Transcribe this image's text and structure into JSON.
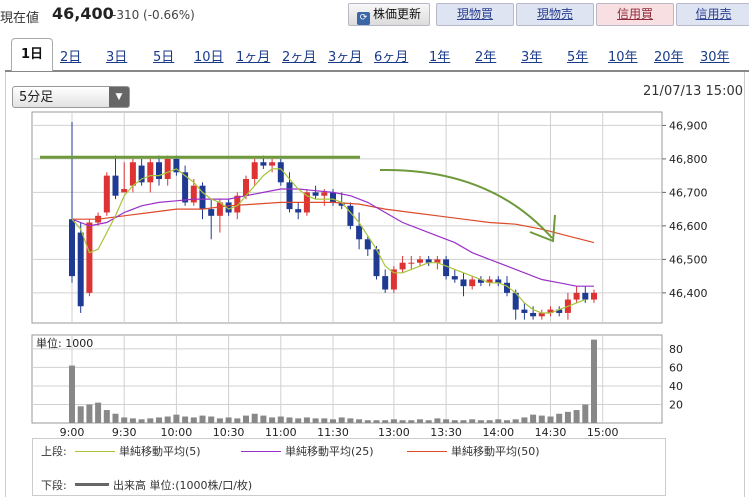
{
  "header": {
    "current_label": "現在値",
    "price": "46,400",
    "change": "-310 (-0.66%)",
    "refresh_label": "株価更新",
    "buttons": [
      "現物買",
      "現物売",
      "信用買",
      "信用売"
    ]
  },
  "tabs": [
    "1日",
    "2日",
    "3日",
    "5日",
    "10日",
    "1ヶ月",
    "2ヶ月",
    "3ヶ月",
    "6ヶ月",
    "1年",
    "2年",
    "3年",
    "5年",
    "10年",
    "20年",
    "30年"
  ],
  "interval_select": "5分足",
  "timestamp": "21/07/13 15:00",
  "colors": {
    "up": "#dd3333",
    "down": "#1f3a93",
    "ma5": "#a8c43a",
    "ma25": "#9b30c8",
    "ma50": "#dd4a2a",
    "volume": "#888888",
    "annotation": "#6e9a3c"
  },
  "chart_data": {
    "type": "candlestick",
    "x_ticks": [
      "9:00",
      "9:30",
      "10:00",
      "10:30",
      "11:00",
      "11:30",
      "13:00",
      "13:30",
      "14:00",
      "14:30",
      "15:00"
    ],
    "y_ticks": [
      "46,900",
      "46,800",
      "46,700",
      "46,600",
      "46,500",
      "46,400"
    ],
    "y_range": [
      46310,
      46940
    ],
    "volume_label": "単位: 1000",
    "volume_ticks": [
      "80",
      "60",
      "40",
      "20"
    ],
    "volume_range": [
      0,
      95
    ],
    "candles": [
      {
        "t": "9:00",
        "o": 46620,
        "h": 46910,
        "l": 46430,
        "c": 46450
      },
      {
        "t": "9:05",
        "o": 46580,
        "h": 46610,
        "l": 46340,
        "c": 46360
      },
      {
        "t": "9:10",
        "o": 46400,
        "h": 46620,
        "l": 46390,
        "c": 46610
      },
      {
        "t": "9:15",
        "o": 46610,
        "h": 46640,
        "l": 46600,
        "c": 46630
      },
      {
        "t": "9:20",
        "o": 46640,
        "h": 46760,
        "l": 46630,
        "c": 46750
      },
      {
        "t": "9:25",
        "o": 46750,
        "h": 46810,
        "l": 46680,
        "c": 46690
      },
      {
        "t": "9:30",
        "o": 46700,
        "h": 46790,
        "l": 46700,
        "c": 46710
      },
      {
        "t": "9:35",
        "o": 46720,
        "h": 46800,
        "l": 46700,
        "c": 46790
      },
      {
        "t": "9:40",
        "o": 46780,
        "h": 46800,
        "l": 46720,
        "c": 46730
      },
      {
        "t": "9:45",
        "o": 46730,
        "h": 46800,
        "l": 46700,
        "c": 46790
      },
      {
        "t": "9:50",
        "o": 46790,
        "h": 46810,
        "l": 46720,
        "c": 46740
      },
      {
        "t": "9:55",
        "o": 46740,
        "h": 46810,
        "l": 46720,
        "c": 46800
      },
      {
        "t": "10:00",
        "o": 46800,
        "h": 46810,
        "l": 46750,
        "c": 46760
      },
      {
        "t": "10:05",
        "o": 46760,
        "h": 46780,
        "l": 46660,
        "c": 46670
      },
      {
        "t": "10:10",
        "o": 46670,
        "h": 46740,
        "l": 46660,
        "c": 46720
      },
      {
        "t": "10:15",
        "o": 46720,
        "h": 46730,
        "l": 46620,
        "c": 46650
      },
      {
        "t": "10:20",
        "o": 46650,
        "h": 46680,
        "l": 46560,
        "c": 46630
      },
      {
        "t": "10:25",
        "o": 46630,
        "h": 46680,
        "l": 46580,
        "c": 46670
      },
      {
        "t": "10:30",
        "o": 46670,
        "h": 46680,
        "l": 46630,
        "c": 46640
      },
      {
        "t": "10:35",
        "o": 46640,
        "h": 46700,
        "l": 46620,
        "c": 46690
      },
      {
        "t": "10:40",
        "o": 46690,
        "h": 46750,
        "l": 46680,
        "c": 46740
      },
      {
        "t": "10:45",
        "o": 46740,
        "h": 46800,
        "l": 46720,
        "c": 46790
      },
      {
        "t": "10:50",
        "o": 46790,
        "h": 46810,
        "l": 46770,
        "c": 46780
      },
      {
        "t": "10:55",
        "o": 46780,
        "h": 46800,
        "l": 46760,
        "c": 46790
      },
      {
        "t": "11:00",
        "o": 46790,
        "h": 46800,
        "l": 46720,
        "c": 46730
      },
      {
        "t": "11:05",
        "o": 46730,
        "h": 46760,
        "l": 46640,
        "c": 46650
      },
      {
        "t": "11:10",
        "o": 46650,
        "h": 46670,
        "l": 46620,
        "c": 46640
      },
      {
        "t": "11:15",
        "o": 46640,
        "h": 46710,
        "l": 46630,
        "c": 46700
      },
      {
        "t": "11:20",
        "o": 46700,
        "h": 46720,
        "l": 46680,
        "c": 46690
      },
      {
        "t": "11:25",
        "o": 46690,
        "h": 46710,
        "l": 46660,
        "c": 46700
      },
      {
        "t": "11:30",
        "o": 46700,
        "h": 46710,
        "l": 46660,
        "c": 46670
      },
      {
        "t": "12:30",
        "o": 46670,
        "h": 46700,
        "l": 46650,
        "c": 46660
      },
      {
        "t": "12:35",
        "o": 46660,
        "h": 46670,
        "l": 46590,
        "c": 46600
      },
      {
        "t": "12:40",
        "o": 46600,
        "h": 46640,
        "l": 46530,
        "c": 46560
      },
      {
        "t": "12:45",
        "o": 46560,
        "h": 46570,
        "l": 46510,
        "c": 46530
      },
      {
        "t": "12:50",
        "o": 46530,
        "h": 46540,
        "l": 46440,
        "c": 46450
      },
      {
        "t": "12:55",
        "o": 46450,
        "h": 46470,
        "l": 46400,
        "c": 46410
      },
      {
        "t": "13:00",
        "o": 46410,
        "h": 46480,
        "l": 46400,
        "c": 46470
      },
      {
        "t": "13:05",
        "o": 46470,
        "h": 46510,
        "l": 46460,
        "c": 46490
      },
      {
        "t": "13:10",
        "o": 46490,
        "h": 46510,
        "l": 46470,
        "c": 46490
      },
      {
        "t": "13:15",
        "o": 46490,
        "h": 46510,
        "l": 46480,
        "c": 46500
      },
      {
        "t": "13:20",
        "o": 46500,
        "h": 46510,
        "l": 46480,
        "c": 46490
      },
      {
        "t": "13:25",
        "o": 46490,
        "h": 46510,
        "l": 46470,
        "c": 46500
      },
      {
        "t": "13:30",
        "o": 46500,
        "h": 46510,
        "l": 46440,
        "c": 46450
      },
      {
        "t": "13:35",
        "o": 46450,
        "h": 46470,
        "l": 46430,
        "c": 46440
      },
      {
        "t": "13:40",
        "o": 46440,
        "h": 46460,
        "l": 46390,
        "c": 46420
      },
      {
        "t": "13:45",
        "o": 46420,
        "h": 46450,
        "l": 46410,
        "c": 46440
      },
      {
        "t": "13:50",
        "o": 46440,
        "h": 46450,
        "l": 46420,
        "c": 46430
      },
      {
        "t": "13:55",
        "o": 46430,
        "h": 46450,
        "l": 46420,
        "c": 46440
      },
      {
        "t": "14:00",
        "o": 46440,
        "h": 46450,
        "l": 46420,
        "c": 46430
      },
      {
        "t": "14:05",
        "o": 46430,
        "h": 46450,
        "l": 46390,
        "c": 46400
      },
      {
        "t": "14:10",
        "o": 46400,
        "h": 46410,
        "l": 46320,
        "c": 46350
      },
      {
        "t": "14:15",
        "o": 46350,
        "h": 46370,
        "l": 46320,
        "c": 46340
      },
      {
        "t": "14:20",
        "o": 46340,
        "h": 46360,
        "l": 46320,
        "c": 46330
      },
      {
        "t": "14:25",
        "o": 46330,
        "h": 46350,
        "l": 46320,
        "c": 46340
      },
      {
        "t": "14:30",
        "o": 46340,
        "h": 46360,
        "l": 46330,
        "c": 46350
      },
      {
        "t": "14:35",
        "o": 46350,
        "h": 46360,
        "l": 46330,
        "c": 46340
      },
      {
        "t": "14:40",
        "o": 46340,
        "h": 46400,
        "l": 46320,
        "c": 46380
      },
      {
        "t": "14:45",
        "o": 46380,
        "h": 46420,
        "l": 46370,
        "c": 46400
      },
      {
        "t": "14:50",
        "o": 46400,
        "h": 46420,
        "l": 46370,
        "c": 46380
      },
      {
        "t": "14:55",
        "o": 46380,
        "h": 46410,
        "l": 46370,
        "c": 46400
      }
    ],
    "volume": [
      62,
      18,
      20,
      22,
      14,
      10,
      6,
      5,
      4,
      5,
      6,
      7,
      9,
      7,
      6,
      8,
      7,
      5,
      6,
      5,
      8,
      10,
      8,
      6,
      7,
      6,
      5,
      6,
      5,
      5,
      4,
      6,
      5,
      4,
      3,
      3,
      3,
      4,
      3,
      3,
      4,
      3,
      5,
      4,
      3,
      3,
      4,
      3,
      3,
      4,
      3,
      4,
      6,
      9,
      8,
      7,
      10,
      12,
      14,
      20,
      90
    ],
    "ma5": [
      [
        0,
        46620
      ],
      [
        1,
        46590
      ],
      [
        2,
        46520
      ],
      [
        3,
        46530
      ],
      [
        4,
        46580
      ],
      [
        5,
        46630
      ],
      [
        6,
        46690
      ],
      [
        7,
        46720
      ],
      [
        8,
        46740
      ],
      [
        9,
        46750
      ],
      [
        10,
        46750
      ],
      [
        11,
        46760
      ],
      [
        12,
        46770
      ],
      [
        13,
        46750
      ],
      [
        14,
        46730
      ],
      [
        15,
        46700
      ],
      [
        16,
        46680
      ],
      [
        17,
        46670
      ],
      [
        18,
        46650
      ],
      [
        19,
        46660
      ],
      [
        20,
        46690
      ],
      [
        21,
        46720
      ],
      [
        22,
        46750
      ],
      [
        23,
        46770
      ],
      [
        24,
        46770
      ],
      [
        25,
        46740
      ],
      [
        26,
        46710
      ],
      [
        27,
        46690
      ],
      [
        28,
        46680
      ],
      [
        29,
        46680
      ],
      [
        30,
        46680
      ],
      [
        31,
        46670
      ],
      [
        32,
        46640
      ],
      [
        33,
        46610
      ],
      [
        34,
        46570
      ],
      [
        35,
        46530
      ],
      [
        36,
        46480
      ],
      [
        37,
        46460
      ],
      [
        38,
        46460
      ],
      [
        39,
        46470
      ],
      [
        40,
        46480
      ],
      [
        41,
        46490
      ],
      [
        42,
        46490
      ],
      [
        43,
        46480
      ],
      [
        44,
        46470
      ],
      [
        45,
        46460
      ],
      [
        46,
        46450
      ],
      [
        47,
        46440
      ],
      [
        48,
        46430
      ],
      [
        49,
        46430
      ],
      [
        50,
        46420
      ],
      [
        51,
        46400
      ],
      [
        52,
        46370
      ],
      [
        53,
        46350
      ],
      [
        54,
        46340
      ],
      [
        55,
        46340
      ],
      [
        56,
        46350
      ],
      [
        57,
        46360
      ],
      [
        58,
        46370
      ],
      [
        59,
        46380
      ]
    ],
    "ma25": [
      [
        0,
        46620
      ],
      [
        2,
        46600
      ],
      [
        4,
        46610
      ],
      [
        6,
        46640
      ],
      [
        8,
        46660
      ],
      [
        10,
        46670
      ],
      [
        12,
        46675
      ],
      [
        14,
        46680
      ],
      [
        16,
        46680
      ],
      [
        18,
        46680
      ],
      [
        20,
        46690
      ],
      [
        22,
        46700
      ],
      [
        24,
        46710
      ],
      [
        26,
        46710
      ],
      [
        28,
        46705
      ],
      [
        30,
        46700
      ],
      [
        32,
        46690
      ],
      [
        34,
        46670
      ],
      [
        36,
        46640
      ],
      [
        38,
        46610
      ],
      [
        40,
        46590
      ],
      [
        42,
        46570
      ],
      [
        44,
        46550
      ],
      [
        46,
        46520
      ],
      [
        48,
        46500
      ],
      [
        50,
        46480
      ],
      [
        52,
        46460
      ],
      [
        54,
        46440
      ],
      [
        56,
        46430
      ],
      [
        58,
        46420
      ],
      [
        60,
        46420
      ]
    ],
    "ma50": [
      [
        0,
        46620
      ],
      [
        3,
        46620
      ],
      [
        6,
        46630
      ],
      [
        9,
        46640
      ],
      [
        12,
        46650
      ],
      [
        15,
        46650
      ],
      [
        18,
        46660
      ],
      [
        21,
        46665
      ],
      [
        24,
        46670
      ],
      [
        27,
        46670
      ],
      [
        30,
        46670
      ],
      [
        33,
        46665
      ],
      [
        36,
        46650
      ],
      [
        39,
        46640
      ],
      [
        42,
        46630
      ],
      [
        45,
        46620
      ],
      [
        48,
        46610
      ],
      [
        51,
        46605
      ],
      [
        54,
        46590
      ],
      [
        57,
        46570
      ],
      [
        60,
        46550
      ]
    ],
    "annotations": [
      {
        "type": "horizontal-line",
        "value": 46805,
        "from": "9:00",
        "to": "11:30"
      },
      {
        "type": "arrow",
        "description": "downward curved arrow"
      }
    ]
  },
  "legend": {
    "top_label": "上段:",
    "items": [
      {
        "label": "単純移動平均(5)"
      },
      {
        "label": "単純移動平均(25)"
      },
      {
        "label": "単純移動平均(50)"
      }
    ],
    "bottom_label": "下段:",
    "volume_item": "出来高 単位:(1000株/口/枚)"
  }
}
